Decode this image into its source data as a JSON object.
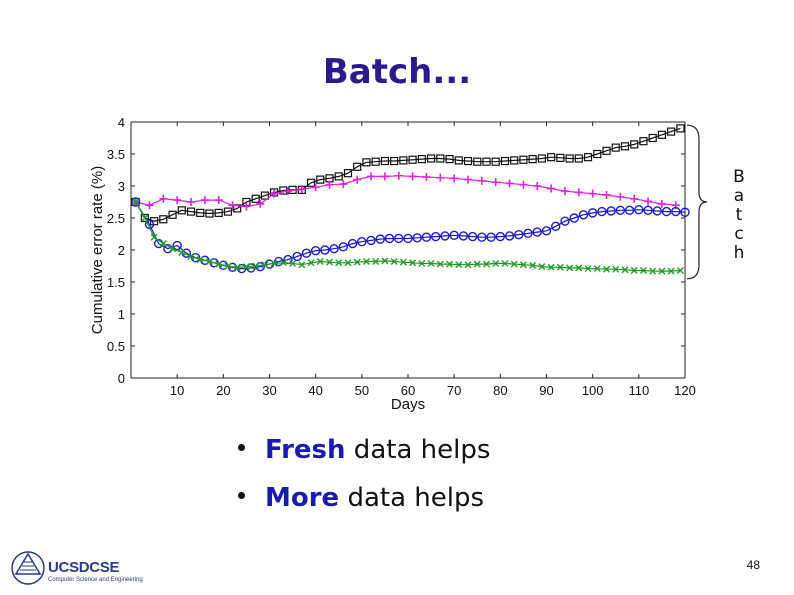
{
  "slide": {
    "title": "Batch...",
    "bracket_label": [
      "B",
      "a",
      "t",
      "c",
      "h"
    ],
    "bullets": [
      {
        "emphasis": "Fresh",
        "rest": " data helps"
      },
      {
        "emphasis": "More",
        "rest": " data helps"
      }
    ],
    "logo": {
      "text": "UCSDCSE",
      "subtitle": "Computer Science and Engineering"
    },
    "page_number": "48"
  },
  "colors": {
    "title": "#2a1a8c",
    "emphasis": "#1a1ab0",
    "series_black": "#111111",
    "series_magenta": "#e020e0",
    "series_blue": "#1a1acc",
    "series_green": "#1e9e1e"
  },
  "chart_data": {
    "type": "line",
    "xlabel": "Days",
    "ylabel": "Cumulative error rate (%)",
    "xlim": [
      0,
      120
    ],
    "ylim": [
      0,
      4
    ],
    "xticks": [
      10,
      20,
      30,
      40,
      50,
      60,
      70,
      80,
      90,
      100,
      110,
      120
    ],
    "yticks": [
      0,
      0.5,
      1,
      1.5,
      2,
      2.5,
      3,
      3.5,
      4
    ],
    "grid": false,
    "series": [
      {
        "marker": "square",
        "color": "#111111",
        "x": [
          1,
          3,
          5,
          7,
          9,
          11,
          13,
          15,
          17,
          19,
          21,
          23,
          25,
          27,
          29,
          31,
          33,
          35,
          37,
          39,
          41,
          43,
          45,
          47,
          49,
          51,
          53,
          55,
          57,
          59,
          61,
          63,
          65,
          67,
          69,
          71,
          73,
          75,
          77,
          79,
          81,
          83,
          85,
          87,
          89,
          91,
          93,
          95,
          97,
          99,
          101,
          103,
          105,
          107,
          109,
          111,
          113,
          115,
          117,
          119
        ],
        "values": [
          2.75,
          2.5,
          2.45,
          2.48,
          2.55,
          2.62,
          2.6,
          2.58,
          2.57,
          2.58,
          2.6,
          2.65,
          2.75,
          2.8,
          2.85,
          2.9,
          2.93,
          2.94,
          2.94,
          3.05,
          3.1,
          3.12,
          3.15,
          3.2,
          3.3,
          3.37,
          3.38,
          3.39,
          3.39,
          3.4,
          3.41,
          3.42,
          3.43,
          3.43,
          3.42,
          3.4,
          3.39,
          3.38,
          3.38,
          3.38,
          3.39,
          3.4,
          3.41,
          3.42,
          3.43,
          3.45,
          3.44,
          3.43,
          3.43,
          3.45,
          3.5,
          3.55,
          3.6,
          3.62,
          3.65,
          3.7,
          3.75,
          3.8,
          3.85,
          3.9
        ]
      },
      {
        "marker": "plus",
        "color": "#e020e0",
        "x": [
          1,
          4,
          7,
          10,
          13,
          16,
          19,
          22,
          25,
          28,
          31,
          34,
          37,
          40,
          43,
          46,
          49,
          52,
          55,
          58,
          61,
          64,
          67,
          70,
          73,
          76,
          79,
          82,
          85,
          88,
          91,
          94,
          97,
          100,
          103,
          106,
          109,
          112,
          115,
          118
        ],
        "values": [
          2.75,
          2.7,
          2.8,
          2.78,
          2.75,
          2.78,
          2.78,
          2.7,
          2.68,
          2.72,
          2.88,
          2.92,
          2.95,
          2.98,
          3.02,
          3.03,
          3.1,
          3.15,
          3.15,
          3.16,
          3.15,
          3.14,
          3.13,
          3.12,
          3.1,
          3.08,
          3.06,
          3.04,
          3.02,
          3.0,
          2.96,
          2.92,
          2.9,
          2.88,
          2.86,
          2.83,
          2.8,
          2.76,
          2.72,
          2.7
        ]
      },
      {
        "marker": "circle",
        "color": "#1a1acc",
        "x": [
          1,
          4,
          6,
          8,
          10,
          12,
          14,
          16,
          18,
          20,
          22,
          24,
          26,
          28,
          30,
          32,
          34,
          36,
          38,
          40,
          42,
          44,
          46,
          48,
          50,
          52,
          54,
          56,
          58,
          60,
          62,
          64,
          66,
          68,
          70,
          72,
          74,
          76,
          78,
          80,
          82,
          84,
          86,
          88,
          90,
          92,
          94,
          96,
          98,
          100,
          102,
          104,
          106,
          108,
          110,
          112,
          114,
          116,
          118,
          120
        ],
        "values": [
          2.75,
          2.4,
          2.1,
          2.02,
          2.07,
          1.95,
          1.88,
          1.84,
          1.8,
          1.76,
          1.73,
          1.71,
          1.72,
          1.74,
          1.78,
          1.82,
          1.85,
          1.9,
          1.95,
          1.99,
          2.0,
          2.02,
          2.05,
          2.1,
          2.13,
          2.15,
          2.17,
          2.18,
          2.18,
          2.18,
          2.19,
          2.2,
          2.21,
          2.22,
          2.23,
          2.22,
          2.21,
          2.2,
          2.2,
          2.21,
          2.22,
          2.24,
          2.26,
          2.28,
          2.3,
          2.37,
          2.45,
          2.5,
          2.55,
          2.58,
          2.6,
          2.61,
          2.62,
          2.62,
          2.63,
          2.62,
          2.61,
          2.6,
          2.6,
          2.59
        ]
      },
      {
        "marker": "x",
        "color": "#1e9e1e",
        "x": [
          1,
          3,
          5,
          7,
          9,
          11,
          13,
          15,
          17,
          19,
          21,
          23,
          25,
          27,
          29,
          31,
          33,
          35,
          37,
          39,
          41,
          43,
          45,
          47,
          49,
          51,
          53,
          55,
          57,
          59,
          61,
          63,
          65,
          67,
          69,
          71,
          73,
          75,
          77,
          79,
          81,
          83,
          85,
          87,
          89,
          91,
          93,
          95,
          97,
          99,
          101,
          103,
          105,
          107,
          109,
          111,
          113,
          115,
          117,
          119
        ],
        "values": [
          2.75,
          2.5,
          2.2,
          2.1,
          2.02,
          1.96,
          1.9,
          1.85,
          1.82,
          1.78,
          1.75,
          1.73,
          1.74,
          1.75,
          1.77,
          1.79,
          1.8,
          1.79,
          1.77,
          1.8,
          1.82,
          1.81,
          1.8,
          1.8,
          1.81,
          1.82,
          1.82,
          1.83,
          1.82,
          1.81,
          1.8,
          1.79,
          1.79,
          1.78,
          1.78,
          1.77,
          1.77,
          1.78,
          1.78,
          1.79,
          1.79,
          1.78,
          1.77,
          1.76,
          1.74,
          1.73,
          1.73,
          1.72,
          1.72,
          1.71,
          1.71,
          1.7,
          1.7,
          1.69,
          1.68,
          1.68,
          1.67,
          1.67,
          1.67,
          1.68
        ]
      }
    ]
  }
}
